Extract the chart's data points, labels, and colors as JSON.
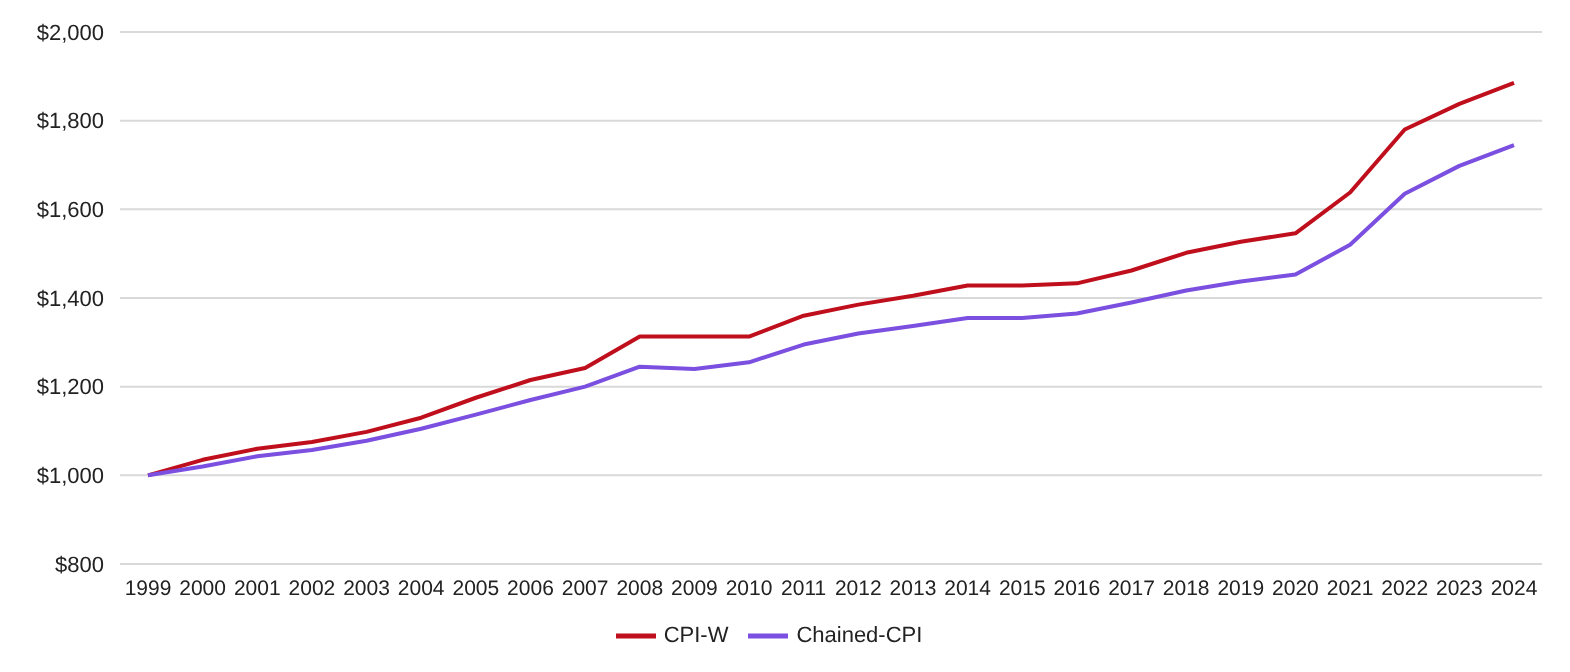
{
  "chart_data": {
    "type": "line",
    "categories": [
      "1999",
      "2000",
      "2001",
      "2002",
      "2003",
      "2004",
      "2005",
      "2006",
      "2007",
      "2008",
      "2009",
      "2010",
      "2011",
      "2012",
      "2013",
      "2014",
      "2015",
      "2016",
      "2017",
      "2018",
      "2019",
      "2020",
      "2021",
      "2022",
      "2023",
      "2024"
    ],
    "series": [
      {
        "name": "CPI-W",
        "color": "#c00f1c",
        "values": [
          1000,
          1035,
          1060,
          1075,
          1098,
          1130,
          1175,
          1215,
          1242,
          1313,
          1313,
          1313,
          1360,
          1385,
          1405,
          1428,
          1428,
          1433,
          1462,
          1502,
          1527,
          1546,
          1638,
          1780,
          1838,
          1885
        ]
      },
      {
        "name": "Chained-CPI",
        "color": "#7b4fe0",
        "values": [
          1000,
          1020,
          1043,
          1057,
          1078,
          1105,
          1137,
          1170,
          1200,
          1245,
          1240,
          1255,
          1295,
          1320,
          1337,
          1355,
          1355,
          1365,
          1390,
          1417,
          1437,
          1453,
          1520,
          1635,
          1698,
          1745
        ]
      }
    ],
    "ylim": [
      800,
      2000
    ],
    "yticks": [
      {
        "value": 800,
        "label": "$800"
      },
      {
        "value": 1000,
        "label": "$1,000"
      },
      {
        "value": 1200,
        "label": "$1,200"
      },
      {
        "value": 1400,
        "label": "$1,400"
      },
      {
        "value": 1600,
        "label": "$1,600"
      },
      {
        "value": 1800,
        "label": "$1,800"
      },
      {
        "value": 2000,
        "label": "$2,000"
      }
    ],
    "grid": "y",
    "legend": "bottom",
    "marker": "none",
    "line_style": "solid"
  }
}
